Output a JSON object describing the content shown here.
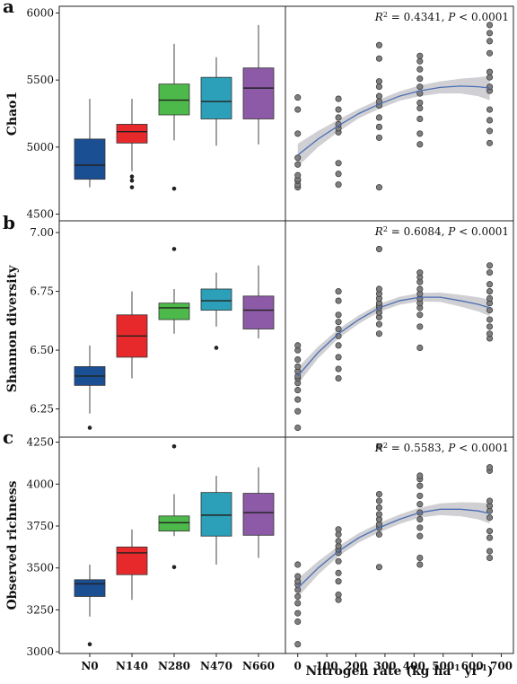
{
  "chart_data": [
    {
      "panel_letter": "a",
      "type": "box",
      "ylabel": "Chao1",
      "ylim": [
        4450,
        6050
      ],
      "yticks": [
        4500,
        5000,
        5500,
        6000
      ],
      "ytick_labels": [
        "4500",
        "5000",
        "5500",
        "6000"
      ],
      "categories": [
        "N0",
        "N140",
        "N280",
        "N470",
        "N660"
      ],
      "colors": [
        "#1b4f94",
        "#e8292b",
        "#4cb94a",
        "#2ca0b8",
        "#8c5aa6"
      ],
      "boxes": [
        {
          "category": "N0",
          "whisker_low": 4700,
          "q1": 4760,
          "median": 4865,
          "q3": 5060,
          "whisker_high": 5360,
          "outliers": []
        },
        {
          "category": "N140",
          "whisker_low": 4820,
          "q1": 5030,
          "median": 5115,
          "q3": 5170,
          "whisker_high": 5360,
          "outliers": [
            4700,
            4750,
            4780
          ]
        },
        {
          "category": "N280",
          "whisker_low": 5050,
          "q1": 5240,
          "median": 5350,
          "q3": 5470,
          "whisker_high": 5770,
          "outliers": [
            4690
          ]
        },
        {
          "category": "N470",
          "whisker_low": 5010,
          "q1": 5210,
          "median": 5340,
          "q3": 5520,
          "whisker_high": 5670,
          "outliers": []
        },
        {
          "category": "N660",
          "whisker_low": 5020,
          "q1": 5210,
          "median": 5440,
          "q3": 5590,
          "whisker_high": 5910,
          "outliers": []
        }
      ]
    },
    {
      "panel_letter": "",
      "type": "scatter",
      "annotation": {
        "r2_label": "R",
        "r2_sup": "2",
        "r2_value": " = 0.4341, ",
        "p_label": "P",
        "p_value": " < 0.0001"
      },
      "ylim": [
        4450,
        6050
      ],
      "xlim": [
        -30,
        720
      ],
      "x_values": [
        0,
        140,
        280,
        420,
        660
      ],
      "points": [
        [
          4700,
          4720,
          4750,
          4760,
          4790,
          4870,
          4920,
          5100,
          5280,
          5370
        ],
        [
          4720,
          4800,
          4880,
          5110,
          5140,
          5170,
          5220,
          5280,
          5360
        ],
        [
          4700,
          5070,
          5150,
          5220,
          5310,
          5340,
          5380,
          5450,
          5490,
          5660,
          5760
        ],
        [
          5020,
          5100,
          5210,
          5290,
          5330,
          5400,
          5450,
          5510,
          5580,
          5640,
          5680
        ],
        [
          5030,
          5120,
          5200,
          5280,
          5420,
          5450,
          5520,
          5560,
          5700,
          5790,
          5850,
          5910
        ]
      ],
      "fit_x": [
        0,
        70,
        140,
        210,
        280,
        350,
        420,
        490,
        560,
        620,
        660
      ],
      "fit_y": [
        4940,
        5060,
        5160,
        5250,
        5320,
        5380,
        5420,
        5445,
        5455,
        5450,
        5440
      ],
      "ci_half_width": [
        85,
        60,
        45,
        35,
        35,
        35,
        40,
        45,
        55,
        70,
        90
      ]
    },
    {
      "panel_letter": "b",
      "type": "box",
      "ylabel": "Shannon diversity",
      "ylim": [
        6.13,
        7.05
      ],
      "yticks": [
        6.25,
        6.5,
        6.75,
        7.0
      ],
      "ytick_labels": [
        "6.25",
        "6.50",
        "6.75",
        "7.00"
      ],
      "categories": [
        "N0",
        "N140",
        "N280",
        "N470",
        "N660"
      ],
      "colors": [
        "#1b4f94",
        "#e8292b",
        "#4cb94a",
        "#2ca0b8",
        "#8c5aa6"
      ],
      "boxes": [
        {
          "category": "N0",
          "whisker_low": 6.23,
          "q1": 6.35,
          "median": 6.39,
          "q3": 6.43,
          "whisker_high": 6.52,
          "outliers": [
            6.17
          ]
        },
        {
          "category": "N140",
          "whisker_low": 6.38,
          "q1": 6.47,
          "median": 6.56,
          "q3": 6.65,
          "whisker_high": 6.75,
          "outliers": []
        },
        {
          "category": "N280",
          "whisker_low": 6.57,
          "q1": 6.63,
          "median": 6.68,
          "q3": 6.7,
          "whisker_high": 6.76,
          "outliers": [
            6.93
          ]
        },
        {
          "category": "N470",
          "whisker_low": 6.6,
          "q1": 6.67,
          "median": 6.71,
          "q3": 6.76,
          "whisker_high": 6.83,
          "outliers": [
            6.51
          ]
        },
        {
          "category": "N660",
          "whisker_low": 6.55,
          "q1": 6.59,
          "median": 6.67,
          "q3": 6.73,
          "whisker_high": 6.86,
          "outliers": []
        }
      ]
    },
    {
      "panel_letter": "",
      "type": "scatter",
      "annotation": {
        "r2_label": "R",
        "r2_sup": "2",
        "r2_value": " = 0.6084, ",
        "p_label": "P",
        "p_value": " < 0.0001"
      },
      "ylim": [
        6.13,
        7.05
      ],
      "xlim": [
        -30,
        720
      ],
      "x_values": [
        0,
        140,
        280,
        420,
        660
      ],
      "points": [
        [
          6.17,
          6.24,
          6.29,
          6.33,
          6.36,
          6.38,
          6.39,
          6.41,
          6.43,
          6.46,
          6.5,
          6.52
        ],
        [
          6.38,
          6.42,
          6.47,
          6.52,
          6.56,
          6.59,
          6.62,
          6.65,
          6.71,
          6.75
        ],
        [
          6.57,
          6.61,
          6.64,
          6.66,
          6.68,
          6.69,
          6.7,
          6.72,
          6.74,
          6.76,
          6.93
        ],
        [
          6.51,
          6.6,
          6.65,
          6.68,
          6.7,
          6.72,
          6.74,
          6.76,
          6.79,
          6.81,
          6.83
        ],
        [
          6.55,
          6.57,
          6.6,
          6.63,
          6.67,
          6.7,
          6.72,
          6.75,
          6.78,
          6.83,
          6.86
        ]
      ],
      "fit_x": [
        0,
        70,
        140,
        210,
        280,
        350,
        420,
        490,
        560,
        620,
        660
      ],
      "fit_y": [
        6.39,
        6.49,
        6.57,
        6.63,
        6.68,
        6.71,
        6.725,
        6.725,
        6.71,
        6.695,
        6.68
      ],
      "ci_half_width": [
        0.035,
        0.025,
        0.02,
        0.018,
        0.017,
        0.017,
        0.018,
        0.02,
        0.025,
        0.03,
        0.035
      ]
    },
    {
      "panel_letter": "c",
      "type": "box",
      "ylabel": "Observed richness",
      "ylim": [
        2990,
        4280
      ],
      "yticks": [
        3000,
        3250,
        3500,
        3750,
        4000,
        4250
      ],
      "ytick_labels": [
        "3000",
        "3250",
        "3500",
        "3750",
        "4000",
        "4250"
      ],
      "categories": [
        "N0",
        "N140",
        "N280",
        "N470",
        "N660"
      ],
      "colors": [
        "#1b4f94",
        "#e8292b",
        "#4cb94a",
        "#2ca0b8",
        "#8c5aa6"
      ],
      "boxes": [
        {
          "category": "N0",
          "whisker_low": 3210,
          "q1": 3330,
          "median": 3405,
          "q3": 3430,
          "whisker_high": 3520,
          "outliers": [
            3045
          ]
        },
        {
          "category": "N140",
          "whisker_low": 3310,
          "q1": 3460,
          "median": 3590,
          "q3": 3625,
          "whisker_high": 3730,
          "outliers": []
        },
        {
          "category": "N280",
          "whisker_low": 3690,
          "q1": 3720,
          "median": 3770,
          "q3": 3810,
          "whisker_high": 3940,
          "outliers": [
            4225,
            3505
          ]
        },
        {
          "category": "N470",
          "whisker_low": 3520,
          "q1": 3690,
          "median": 3815,
          "q3": 3950,
          "whisker_high": 4050,
          "outliers": []
        },
        {
          "category": "N660",
          "whisker_low": 3560,
          "q1": 3695,
          "median": 3830,
          "q3": 3945,
          "whisker_high": 4100,
          "outliers": []
        }
      ]
    },
    {
      "panel_letter": "",
      "type": "scatter",
      "annotation": {
        "r2_label": "R",
        "r2_sup": "2",
        "r2_value": " = 0.5583, ",
        "p_label": "P",
        "p_value": " < 0.0001"
      },
      "ylim": [
        2990,
        4280
      ],
      "xlim": [
        -30,
        720
      ],
      "xticks": [
        0,
        100,
        200,
        300,
        400,
        500,
        600,
        700
      ],
      "xtick_labels": [
        "0",
        "100",
        "200",
        "300",
        "400",
        "500",
        "600",
        "700"
      ],
      "xlabel_main": "Nitrogen rate (kg ha",
      "xlabel_sup1": "-1",
      "xlabel_mid": " yr",
      "xlabel_sup2": "-1",
      "xlabel_end": ")",
      "x_values": [
        0,
        140,
        280,
        420,
        660
      ],
      "points": [
        [
          3045,
          3180,
          3230,
          3290,
          3330,
          3370,
          3400,
          3420,
          3450,
          3520
        ],
        [
          3310,
          3340,
          3420,
          3470,
          3540,
          3590,
          3610,
          3630,
          3660,
          3700,
          3730
        ],
        [
          3505,
          3700,
          3740,
          3760,
          3790,
          3820,
          3860,
          3900,
          3940,
          4225
        ],
        [
          3520,
          3560,
          3690,
          3740,
          3790,
          3830,
          3880,
          3930,
          3990,
          4030,
          4050
        ],
        [
          3560,
          3600,
          3680,
          3720,
          3800,
          3840,
          3870,
          3900,
          4080,
          4100
        ]
      ],
      "fit_x": [
        0,
        70,
        140,
        210,
        280,
        350,
        420,
        490,
        560,
        620,
        660
      ],
      "fit_y": [
        3380,
        3500,
        3600,
        3680,
        3740,
        3790,
        3830,
        3850,
        3850,
        3840,
        3825
      ],
      "ci_half_width": [
        55,
        40,
        30,
        28,
        28,
        28,
        30,
        35,
        42,
        50,
        60
      ]
    }
  ]
}
